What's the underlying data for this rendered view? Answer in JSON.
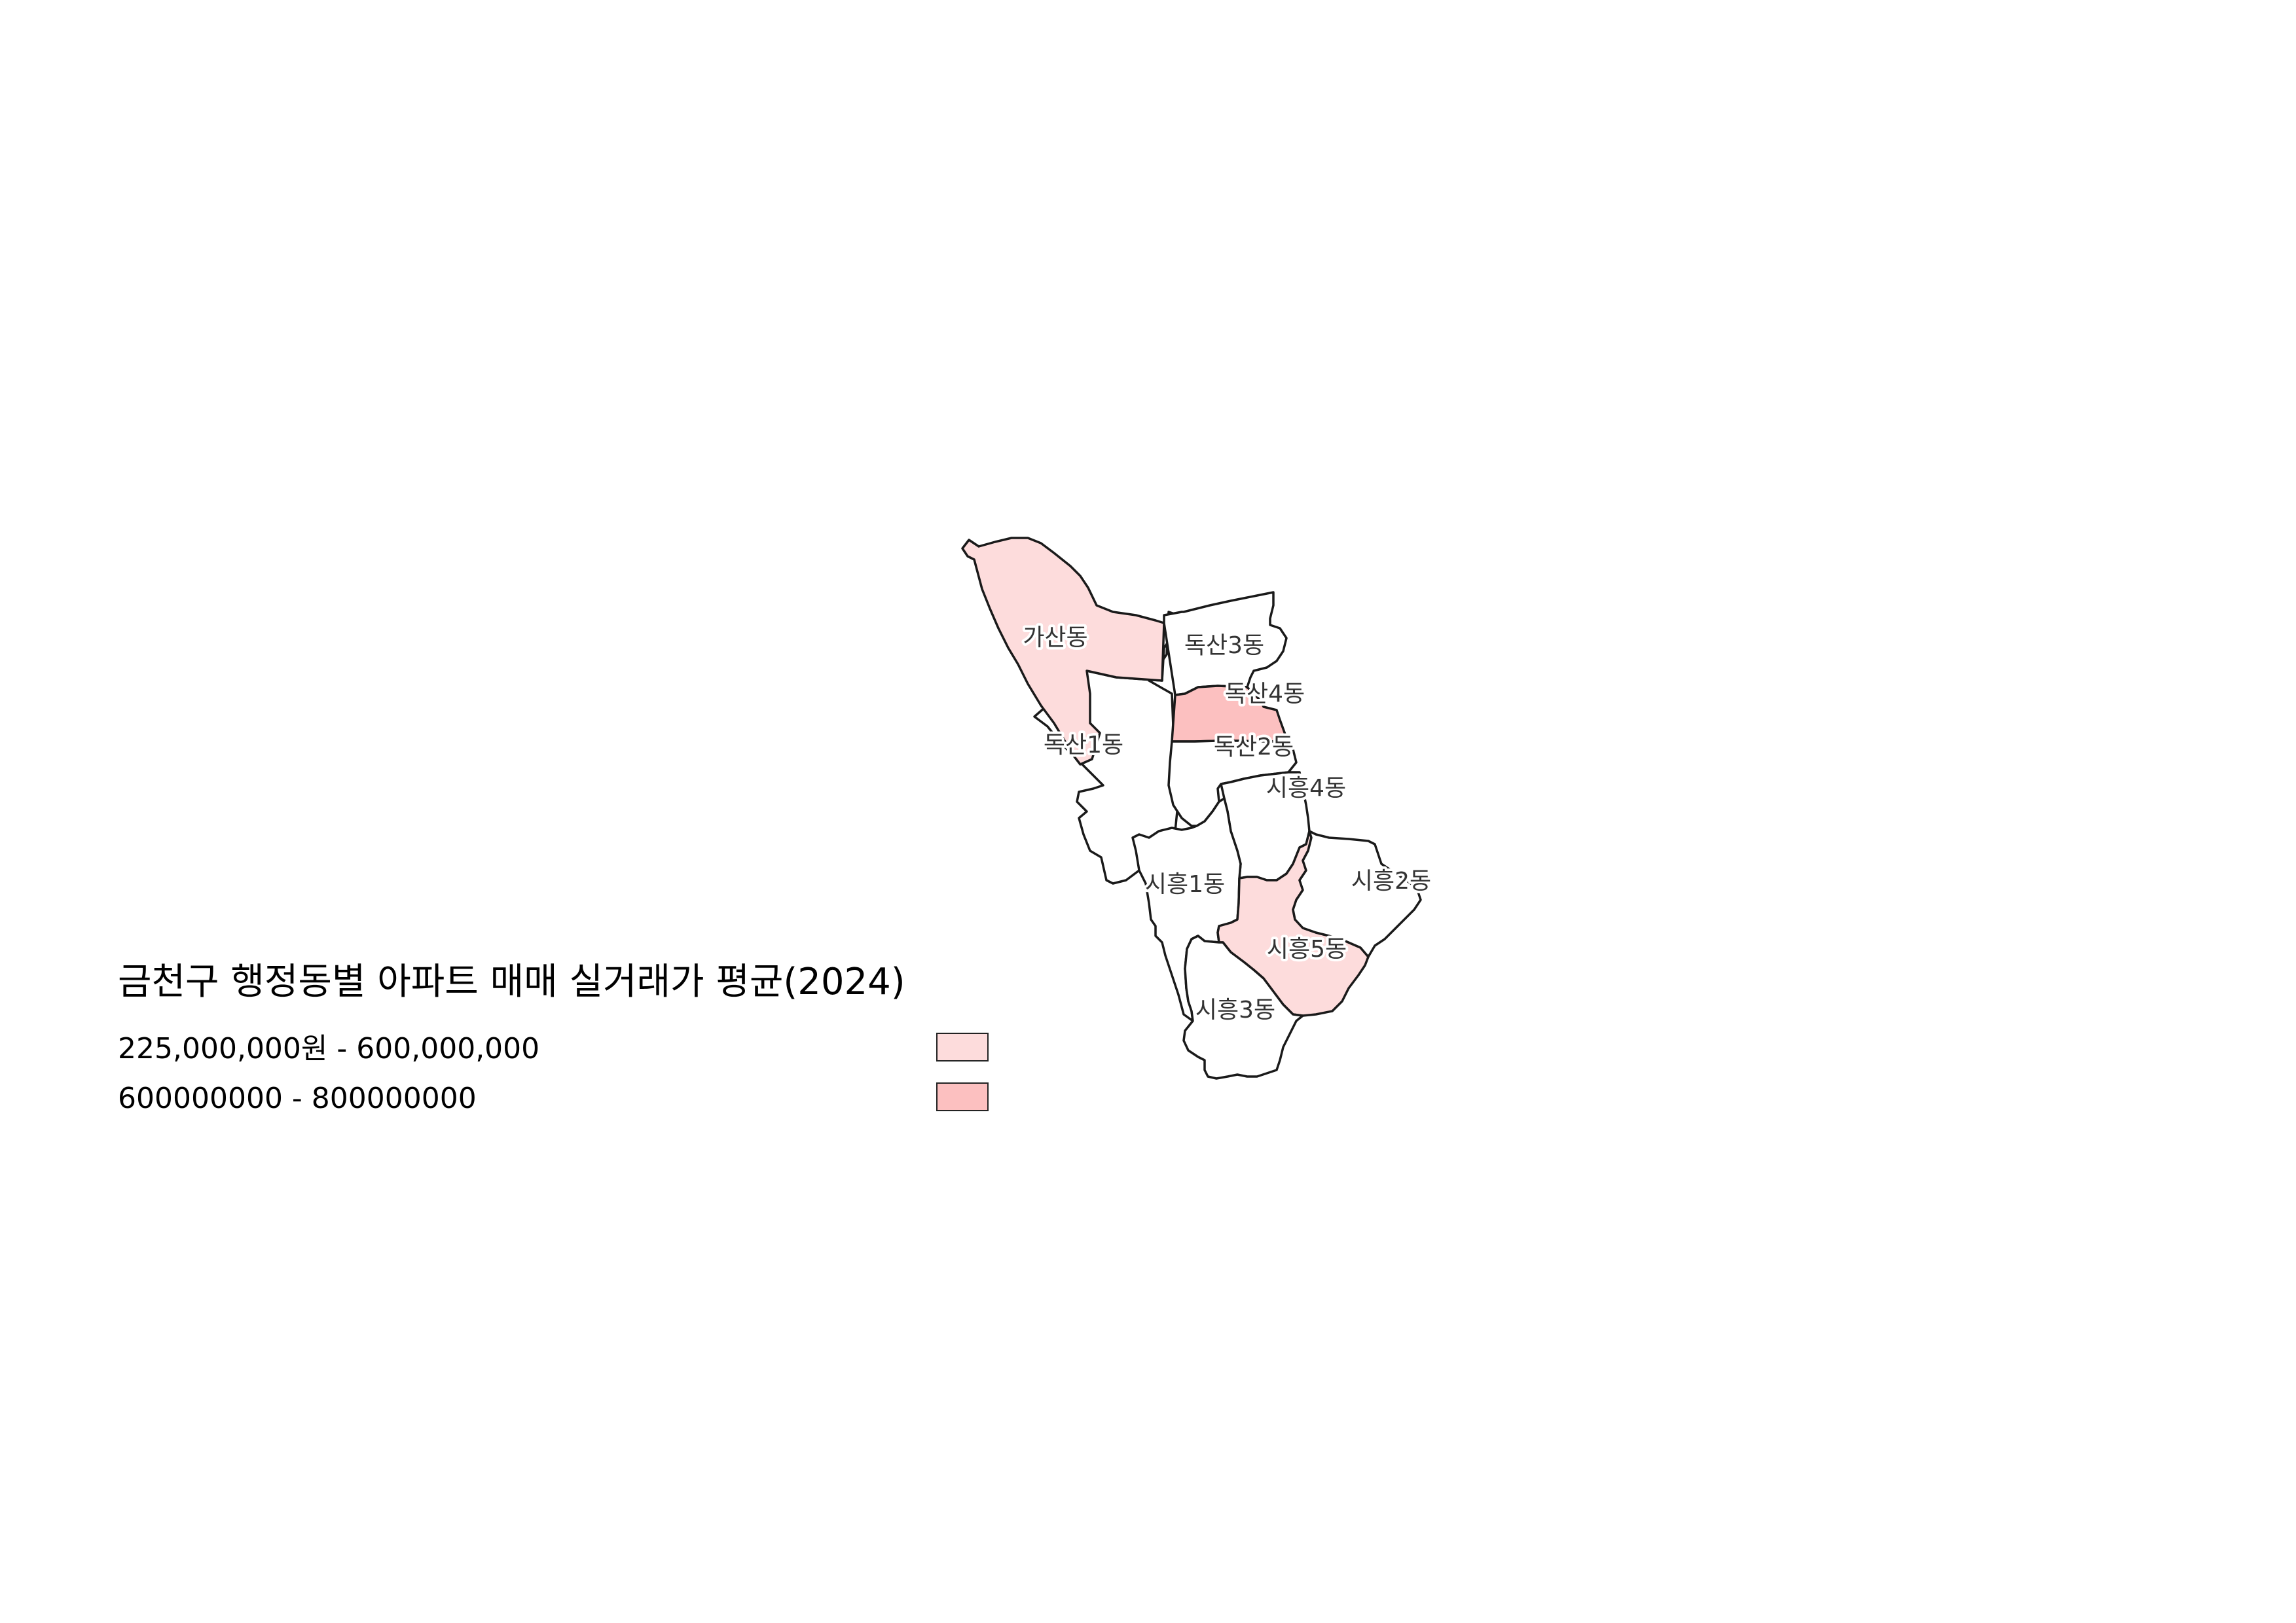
{
  "legend": {
    "title": "금천구 행정동별 아파트 매매 실거래가 평균(2024)",
    "classes": [
      {
        "label": "225,000,000원 - 600,000,000",
        "color": "#fddcdc"
      },
      {
        "label": "600000000 - 800000000",
        "color": "#fcc0c0"
      }
    ]
  },
  "colors": {
    "no_data": "#ffffff",
    "border": "#1a1a1a",
    "label_text": "#333333"
  },
  "districts": [
    {
      "id": "gasan",
      "name": "가산동",
      "class": 0
    },
    {
      "id": "doksan1",
      "name": "독산1동",
      "class": null
    },
    {
      "id": "doksan3",
      "name": "독산3동",
      "class": null
    },
    {
      "id": "doksan4",
      "name": "독산4동",
      "class": 1
    },
    {
      "id": "doksan2",
      "name": "독산2동",
      "class": null
    },
    {
      "id": "siheung4",
      "name": "시흥4동",
      "class": null
    },
    {
      "id": "siheung1",
      "name": "시흥1동",
      "class": null
    },
    {
      "id": "siheung2",
      "name": "시흥2동",
      "class": null
    },
    {
      "id": "siheung5",
      "name": "시흥5동",
      "class": 0
    },
    {
      "id": "siheung3",
      "name": "시흥3동",
      "class": null
    }
  ]
}
